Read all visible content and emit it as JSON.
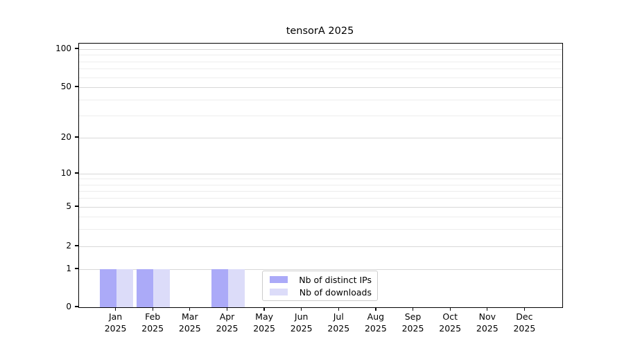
{
  "chart_data": {
    "type": "bar",
    "title": "tensorA 2025",
    "categories": [
      "Jan",
      "Feb",
      "Mar",
      "Apr",
      "May",
      "Jun",
      "Jul",
      "Aug",
      "Sep",
      "Oct",
      "Nov",
      "Dec"
    ],
    "year_label": "2025",
    "series": [
      {
        "name": "Nb of distinct IPs",
        "color": "#abaaf8",
        "values": [
          1,
          1,
          0,
          1,
          0,
          0,
          0,
          0,
          0,
          0,
          0,
          0
        ]
      },
      {
        "name": "Nb of downloads",
        "color": "#dcdcf9",
        "values": [
          1,
          1,
          0,
          1,
          0,
          0,
          0,
          0,
          0,
          0,
          0,
          0
        ]
      }
    ],
    "yticks": [
      0,
      1,
      2,
      5,
      10,
      20,
      50,
      100
    ],
    "y_minor_ticks": [
      3,
      4,
      6,
      7,
      8,
      9,
      30,
      40,
      60,
      70,
      80,
      90
    ],
    "ylim": [
      0,
      140
    ],
    "scale": "symlog",
    "grid": true,
    "legend_position": "lower center"
  },
  "colors": {
    "background": "#ffffff",
    "spine": "#000000",
    "grid_major": "#d8d8d8",
    "grid_minor": "#ededed",
    "legend_border": "#cccccc",
    "bar_distinct_ips": "#abaaf8",
    "bar_downloads": "#dcdcf9"
  }
}
